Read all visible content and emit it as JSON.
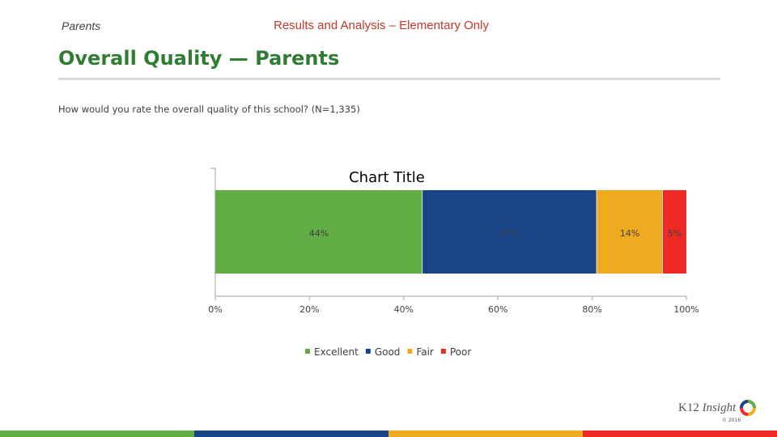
{
  "header": {
    "section": "Parents",
    "title": "Results and Analysis – Elementary Only"
  },
  "page_title": "Overall Quality — Parents",
  "question": "How would you rate the overall quality of this school? (N=1,335)",
  "colors": {
    "excellent": "#62AC46",
    "good": "#1A4488",
    "fair": "#EFAA1F",
    "poor": "#EE2A24",
    "title_green": "#2E7D32",
    "header_red": "#C0392B"
  },
  "chart_data": {
    "type": "bar",
    "orientation": "horizontal",
    "stacked": true,
    "title": "Chart Title",
    "categories": [
      ""
    ],
    "series": [
      {
        "name": "Excellent",
        "values": [
          44
        ],
        "label": "44%",
        "color": "#62AC46"
      },
      {
        "name": "Good",
        "values": [
          37
        ],
        "label": "37%",
        "color": "#1A4488"
      },
      {
        "name": "Fair",
        "values": [
          14
        ],
        "label": "14%",
        "color": "#EFAA1F"
      },
      {
        "name": "Poor",
        "values": [
          5
        ],
        "label": "5%",
        "color": "#EE2A24"
      }
    ],
    "xlim": [
      0,
      100
    ],
    "xticks": [
      "0%",
      "20%",
      "40%",
      "60%",
      "80%",
      "100%"
    ],
    "legend": "bottom",
    "grid": false
  },
  "logo": {
    "text_main": "K12 ",
    "text_italic": "Insight",
    "copyright": "© 2016"
  },
  "footer_band_colors": [
    "#62AC46",
    "#1A4488",
    "#EFAA1F",
    "#EE2A24"
  ]
}
